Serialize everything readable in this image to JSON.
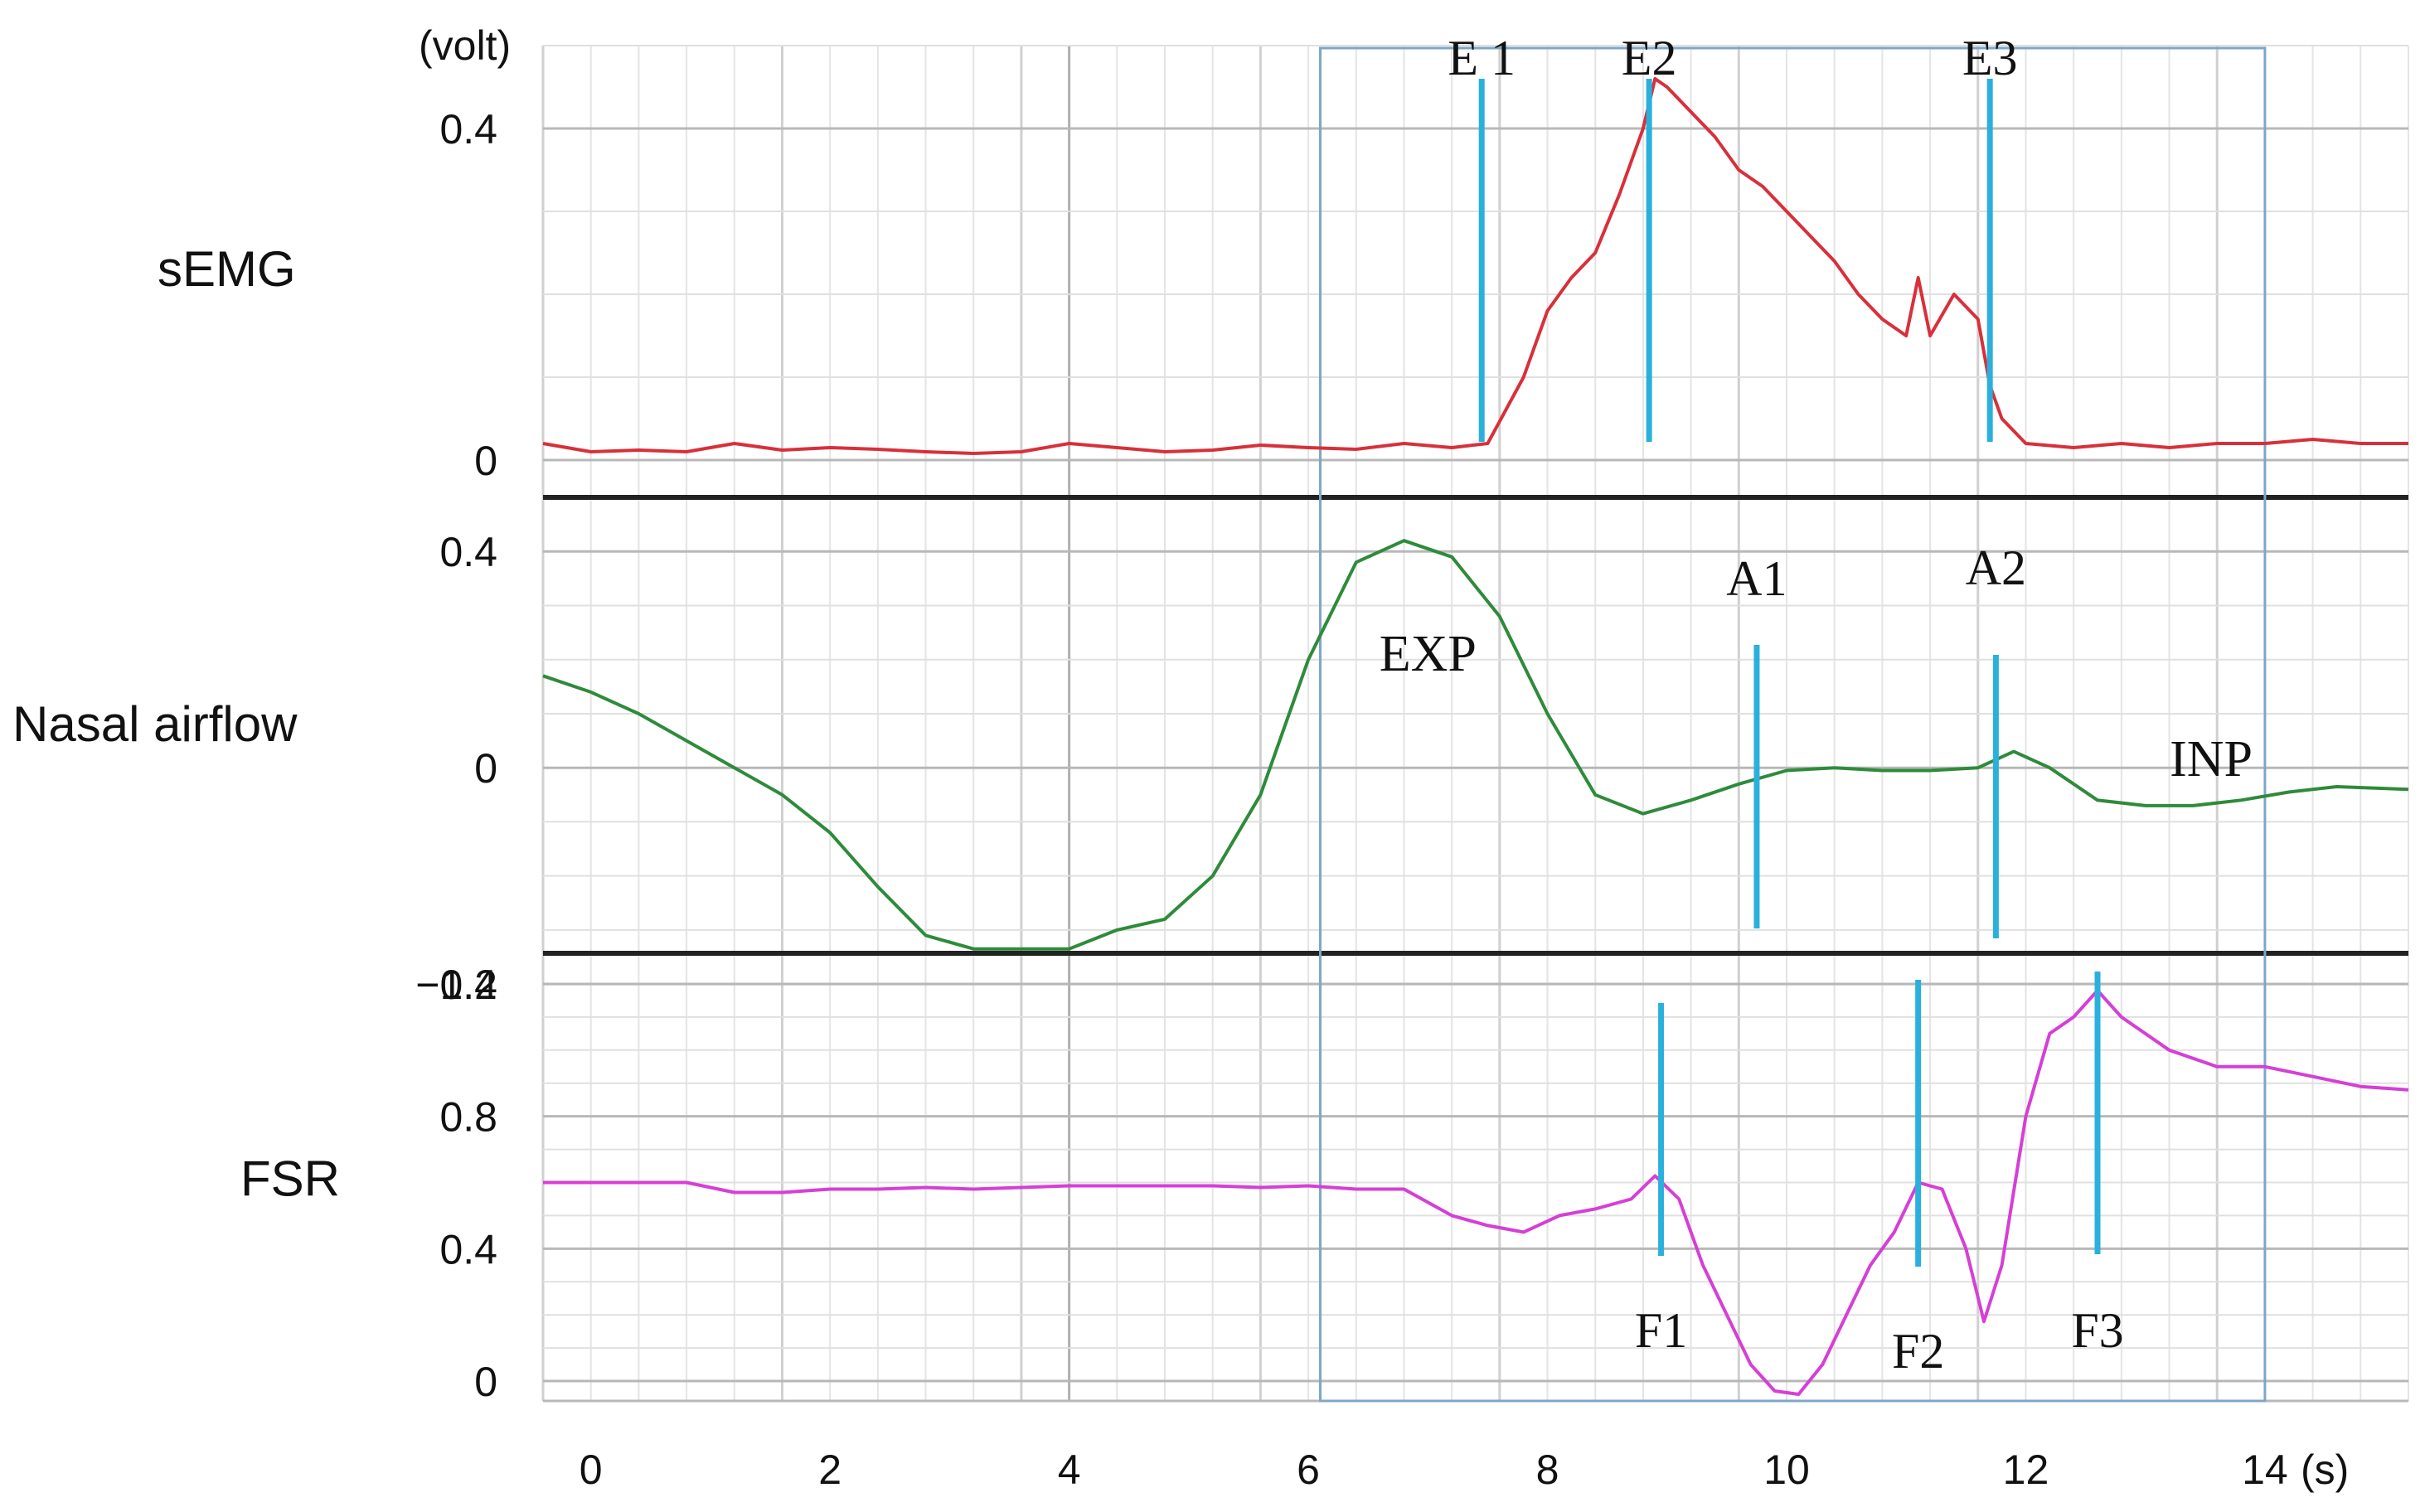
{
  "chart_data": {
    "type": "line",
    "unit_label": "(volt)",
    "x_unit_label": "(s)",
    "x_ticks": [
      0,
      2,
      4,
      6,
      8,
      10,
      12,
      14
    ],
    "xlim": [
      -0.4,
      15.2
    ],
    "selection_box_x": [
      6.1,
      14.0
    ],
    "colors": {
      "semg": "#d8303a",
      "airflow": "#2e8b3a",
      "fsr": "#d63fd6",
      "markers": "#2ab0dd",
      "box": "#7fa6c8",
      "divider": "#222222",
      "grid": "#c8c8c8"
    },
    "panels": [
      {
        "key": "semg",
        "label": "sEMG",
        "y_ticks": [
          {
            "value": 0,
            "text": "0"
          },
          {
            "value": 0.4,
            "text": "0.4"
          }
        ],
        "ylim": [
          -0.04,
          0.5
        ],
        "series": {
          "x": [
            -0.4,
            0,
            0.4,
            0.8,
            1.2,
            1.6,
            2,
            2.4,
            2.8,
            3.2,
            3.6,
            4,
            4.4,
            4.8,
            5.2,
            5.6,
            6,
            6.4,
            6.8,
            7.2,
            7.5,
            7.8,
            8.0,
            8.2,
            8.4,
            8.6,
            8.8,
            8.9,
            9.0,
            9.2,
            9.4,
            9.6,
            9.8,
            10.0,
            10.2,
            10.4,
            10.6,
            10.8,
            11.0,
            11.1,
            11.2,
            11.4,
            11.6,
            11.7,
            11.8,
            12.0,
            12.4,
            12.8,
            13.2,
            13.6,
            14,
            14.4,
            14.8,
            15.2
          ],
          "values": [
            0.02,
            0.01,
            0.012,
            0.01,
            0.02,
            0.012,
            0.015,
            0.013,
            0.01,
            0.008,
            0.01,
            0.02,
            0.015,
            0.01,
            0.012,
            0.018,
            0.015,
            0.013,
            0.02,
            0.015,
            0.02,
            0.1,
            0.18,
            0.22,
            0.25,
            0.32,
            0.4,
            0.46,
            0.45,
            0.42,
            0.39,
            0.35,
            0.33,
            0.3,
            0.27,
            0.24,
            0.2,
            0.17,
            0.15,
            0.22,
            0.15,
            0.2,
            0.17,
            0.09,
            0.05,
            0.02,
            0.015,
            0.02,
            0.015,
            0.02,
            0.02,
            0.025,
            0.02,
            0.02
          ]
        },
        "markers": [
          {
            "x": 7.45,
            "label": "E 1"
          },
          {
            "x": 8.85,
            "label": "E2"
          },
          {
            "x": 11.7,
            "label": "E3"
          }
        ]
      },
      {
        "key": "airflow",
        "label": "Nasal airflow",
        "y_ticks": [
          {
            "value": -0.4,
            "text": "−0.4"
          },
          {
            "value": 0,
            "text": "0"
          },
          {
            "value": 0.4,
            "text": "0.4"
          }
        ],
        "ylim": [
          -0.34,
          0.5
        ],
        "series": {
          "x": [
            -0.4,
            0,
            0.4,
            0.8,
            1.2,
            1.6,
            2,
            2.4,
            2.8,
            3.2,
            3.6,
            4,
            4.4,
            4.8,
            5.2,
            5.6,
            6,
            6.4,
            6.8,
            7.2,
            7.6,
            8,
            8.4,
            8.8,
            9.2,
            9.6,
            10,
            10.4,
            10.8,
            11.2,
            11.6,
            11.9,
            12.2,
            12.6,
            13,
            13.4,
            13.8,
            14.2,
            14.6,
            15.2
          ],
          "values": [
            0.17,
            0.14,
            0.1,
            0.05,
            0.0,
            -0.05,
            -0.12,
            -0.22,
            -0.31,
            -0.335,
            -0.335,
            -0.335,
            -0.3,
            -0.28,
            -0.2,
            -0.05,
            0.2,
            0.38,
            0.42,
            0.39,
            0.28,
            0.1,
            -0.05,
            -0.085,
            -0.06,
            -0.03,
            -0.005,
            0.0,
            -0.005,
            -0.005,
            0.0,
            0.03,
            0.0,
            -0.06,
            -0.07,
            -0.07,
            -0.06,
            -0.045,
            -0.035,
            -0.04
          ]
        },
        "markers": [
          {
            "x": 9.75,
            "label": "A1"
          },
          {
            "x": 11.75,
            "label": "A2"
          }
        ],
        "annotations": [
          {
            "text": "EXP",
            "x": 7.0,
            "y": 0.18
          },
          {
            "text": "INP",
            "x": 13.55,
            "y": -0.015
          }
        ]
      },
      {
        "key": "fsr",
        "label": "FSR",
        "y_ticks": [
          {
            "value": 0,
            "text": "0"
          },
          {
            "value": 0.4,
            "text": "0.4"
          },
          {
            "value": 0.8,
            "text": "0.8"
          },
          {
            "value": 1.2,
            "text": "1.2"
          }
        ],
        "ylim": [
          -0.06,
          1.28
        ],
        "series": {
          "x": [
            -0.4,
            0,
            0.4,
            0.8,
            1.2,
            1.6,
            2,
            2.4,
            2.8,
            3.2,
            3.6,
            4,
            4.4,
            4.8,
            5.2,
            5.6,
            6,
            6.4,
            6.8,
            7.2,
            7.5,
            7.8,
            8.1,
            8.4,
            8.7,
            8.9,
            9.1,
            9.3,
            9.5,
            9.7,
            9.9,
            10.1,
            10.3,
            10.5,
            10.7,
            10.9,
            11.1,
            11.3,
            11.5,
            11.65,
            11.8,
            12.0,
            12.2,
            12.4,
            12.6,
            12.8,
            13.2,
            13.6,
            14,
            14.4,
            14.8,
            15.2
          ],
          "values": [
            0.6,
            0.6,
            0.6,
            0.6,
            0.57,
            0.57,
            0.58,
            0.58,
            0.585,
            0.58,
            0.585,
            0.59,
            0.59,
            0.59,
            0.59,
            0.585,
            0.59,
            0.58,
            0.58,
            0.5,
            0.47,
            0.45,
            0.5,
            0.52,
            0.55,
            0.62,
            0.55,
            0.35,
            0.2,
            0.05,
            -0.03,
            -0.04,
            0.05,
            0.2,
            0.35,
            0.45,
            0.6,
            0.58,
            0.4,
            0.18,
            0.35,
            0.8,
            1.05,
            1.1,
            1.18,
            1.1,
            1.0,
            0.95,
            0.95,
            0.92,
            0.89,
            0.88
          ]
        },
        "markers": [
          {
            "x": 8.95,
            "label": "F1"
          },
          {
            "x": 11.1,
            "label": "F2"
          },
          {
            "x": 12.6,
            "label": "F3"
          }
        ]
      }
    ]
  }
}
